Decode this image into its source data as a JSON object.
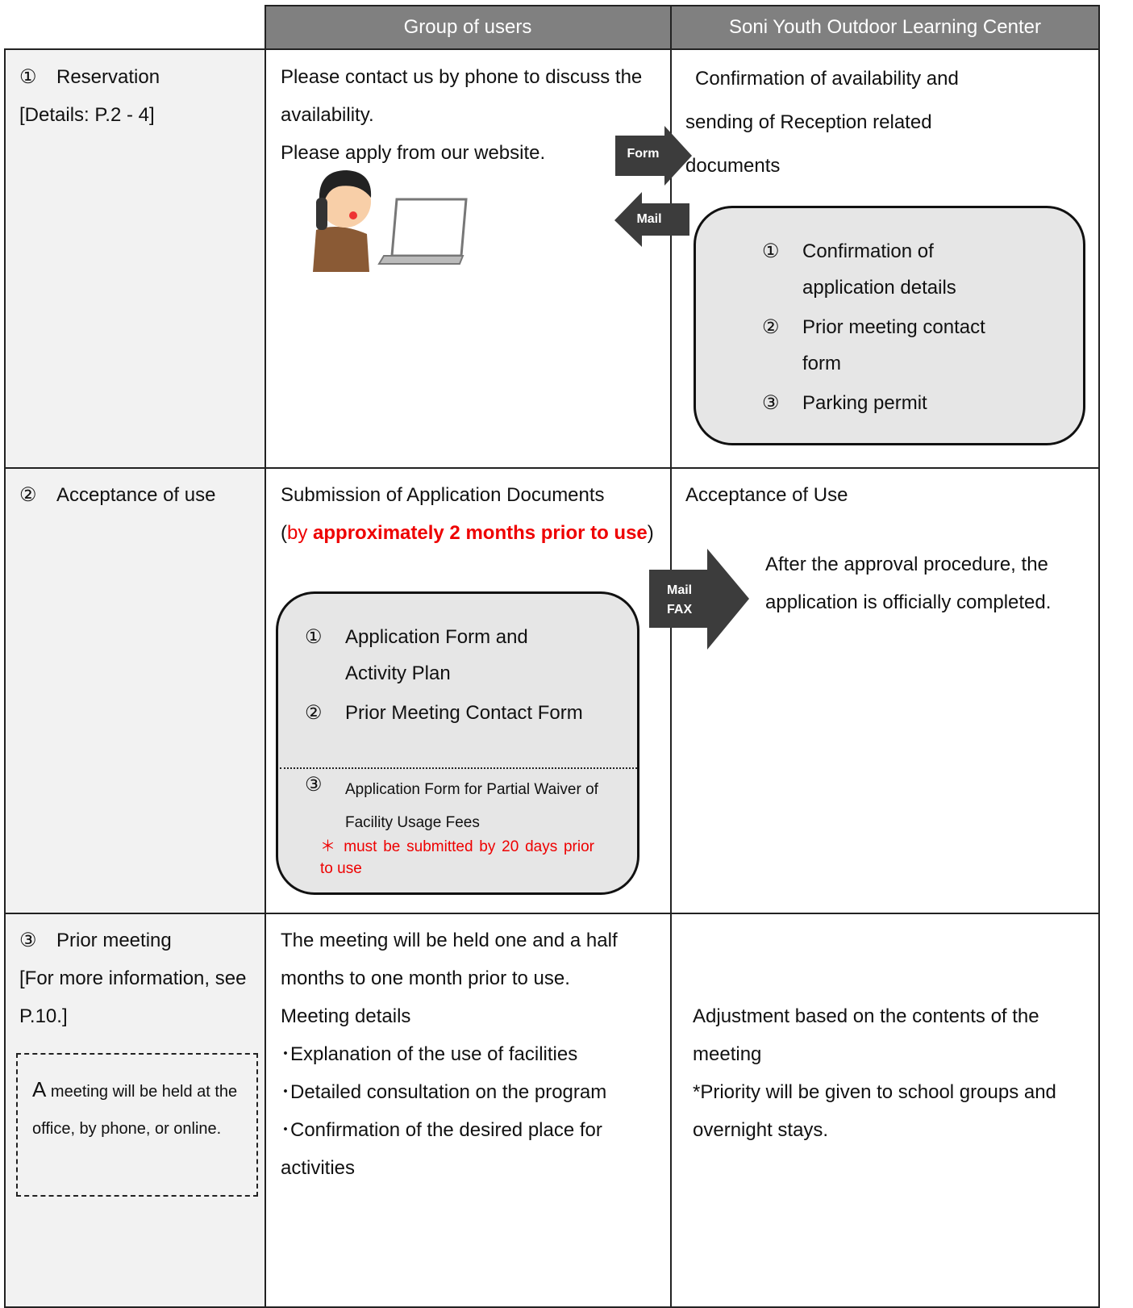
{
  "header": {
    "users": "Group of users",
    "center": "Soni Youth Outdoor Learning Center"
  },
  "reservation": {
    "number": "①",
    "title": "Reservation",
    "details": "[Details: P.2 - 4]",
    "users": [
      "Please contact us by phone to discuss the availability.",
      "Please apply from our website."
    ],
    "arrow_right": "Form",
    "arrow_left": "Mail",
    "center": "Confirmation of availability and sending of Reception related documents",
    "documents": [
      {
        "number": "①",
        "text": "Confirmation of application details"
      },
      {
        "number": "②",
        "text": "Prior meeting contact form"
      },
      {
        "number": "③",
        "text": "Parking permit"
      }
    ]
  },
  "acceptance": {
    "number": "②",
    "title": "Acceptance of use",
    "users": "Submission of Application Documents",
    "deadline": {
      "open": "(",
      "by": "by",
      "emphasis": "approximately 2 months prior to use",
      "close": ")"
    },
    "documents": [
      {
        "number": "①",
        "text": "Application Form and Activity Plan"
      },
      {
        "number": "②",
        "text": "Prior Meeting Contact Form"
      },
      {
        "number": "③",
        "text": "Application Form for Partial Waiver of Facility Usage Fees",
        "note": "＊ must be submitted by 20 days prior to use"
      }
    ],
    "arrow": [
      "Mail",
      "FAX"
    ],
    "center_title": "Acceptance of Use",
    "center": "After the approval procedure, the application is officially completed."
  },
  "meeting": {
    "number": "③",
    "title": "Prior meeting",
    "details": "[For more information, see P.10.]",
    "note_initial": "A",
    "note": "meeting will be held at the office, by phone, or online.",
    "users": [
      "The meeting will be held one and a half months to one month prior to use.",
      "Meeting details",
      "･Explanation of the use of facilities",
      "･Detailed consultation on the program",
      "･Confirmation of the desired place for activities"
    ],
    "center": [
      "Adjustment based on the contents of the meeting",
      "*Priority will be given to school groups and overnight stays."
    ]
  }
}
